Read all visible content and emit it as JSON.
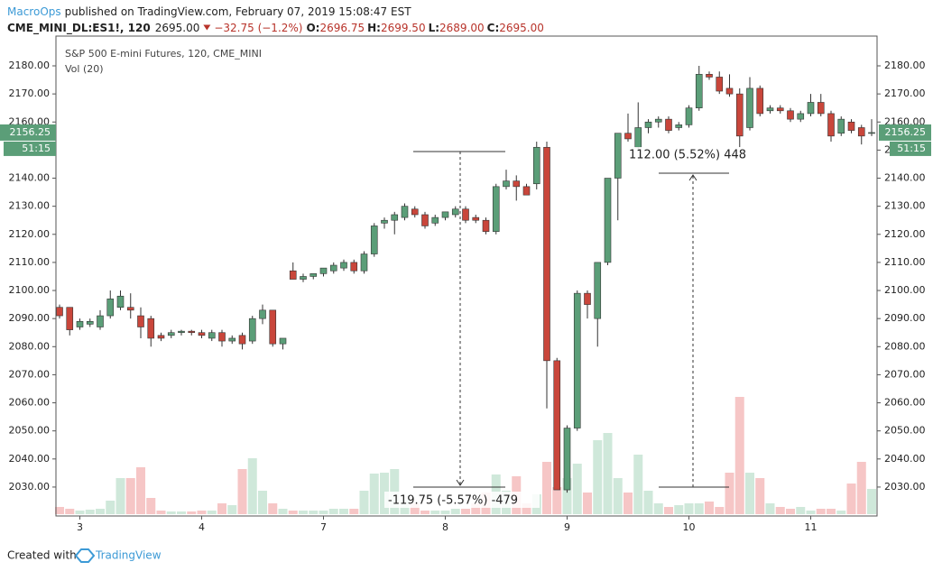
{
  "header": {
    "publisher": "MacroOps",
    "published": "published on TradingView.com, February 07, 2019 15:08:47 EST",
    "symbol": "CME_MINI_DL:ES1!, 120",
    "price": "2695.00",
    "change": "−32.75 (−1.2%)",
    "ohlc": [
      {
        "label": "O:",
        "value": "2696.75"
      },
      {
        "label": "H:",
        "value": "2699.50"
      },
      {
        "label": "L:",
        "value": "2689.00"
      },
      {
        "label": "C:",
        "value": "2695.00"
      }
    ]
  },
  "chart_data": {
    "type": "candlestick",
    "title": "S&P 500 E-mini Futures, 120, CME_MINI",
    "volume_label": "Vol (20)",
    "countdown": "51:15",
    "up_color": "#5b9e78",
    "down_color": "#c9463b",
    "up_volume_color": "#cfe8da",
    "down_volume_color": "#f6c6c6",
    "categories": [
      null,
      null,
      "3",
      null,
      null,
      null,
      null,
      null,
      null,
      null,
      null,
      null,
      null,
      null,
      "4",
      null,
      null,
      null,
      null,
      null,
      null,
      null,
      null,
      null,
      null,
      null,
      "7",
      null,
      null,
      null,
      null,
      null,
      null,
      null,
      null,
      null,
      null,
      null,
      "8",
      null,
      null,
      null,
      null,
      null,
      null,
      null,
      null,
      null,
      null,
      null,
      "9",
      null,
      null,
      null,
      null,
      null,
      null,
      null,
      null,
      null,
      null,
      null,
      "10",
      null,
      null,
      null,
      null,
      null,
      null,
      null,
      null,
      null,
      null,
      null,
      "11",
      null,
      null,
      null,
      null,
      null,
      null
    ],
    "open": [
      2094,
      2094,
      2087,
      2088,
      2087,
      2091,
      2094,
      2094,
      2091,
      2090,
      2084,
      2084,
      2085,
      2085.5,
      2085,
      2083,
      2085,
      2082,
      2084,
      2082,
      2090,
      2093,
      2081,
      2107,
      2104,
      2105,
      2106,
      2107,
      2108,
      2110,
      2107,
      2113,
      2124,
      2125,
      2126,
      2129,
      2127,
      2124,
      2126,
      2127,
      2129,
      2126,
      2125,
      2121,
      2137,
      2139,
      2137,
      2138,
      2151,
      2075,
      2029,
      2051,
      2099,
      2090,
      2110,
      2140,
      2156,
      2151,
      2158,
      2160,
      2161,
      2158,
      2159,
      2165,
      2177,
      2176,
      2172,
      2170,
      2158,
      2172,
      2164,
      2165,
      2164,
      2161,
      2163,
      2167,
      2163,
      2156,
      2160,
      2158,
      2156
    ],
    "high": [
      2095,
      2094,
      2090,
      2090,
      2093,
      2100,
      2100,
      2099,
      2094,
      2091,
      2085,
      2086,
      2086,
      2086,
      2086,
      2086,
      2086,
      2084,
      2085,
      2091,
      2095,
      2093,
      2083,
      2110,
      2106,
      2106,
      2108,
      2110,
      2111,
      2111,
      2114,
      2124,
      2126,
      2128,
      2131,
      2130,
      2128,
      2127,
      2128,
      2130,
      2130,
      2127,
      2126,
      2138,
      2143,
      2141,
      2138,
      2153,
      2153,
      2076,
      2052,
      2100,
      2100,
      2110,
      2140,
      2156,
      2163,
      2167,
      2161,
      2162,
      2162,
      2160,
      2166,
      2180,
      2178,
      2178,
      2177,
      2172,
      2176,
      2173,
      2166,
      2166,
      2165,
      2164,
      2170,
      2170,
      2164,
      2162,
      2161,
      2159,
      2161
    ],
    "low": [
      2090,
      2084,
      2086,
      2087,
      2086,
      2090,
      2093,
      2090,
      2083,
      2080,
      2082,
      2083,
      2084,
      2084,
      2083,
      2082,
      2080,
      2081,
      2079,
      2081,
      2088,
      2080,
      2079,
      2104,
      2103,
      2104,
      2105,
      2106,
      2107,
      2106,
      2106,
      2112,
      2122,
      2120,
      2125,
      2126,
      2122,
      2123,
      2125,
      2126,
      2124,
      2124,
      2120,
      2120,
      2136,
      2132,
      2134,
      2136,
      2058,
      2029,
      2028,
      2050,
      2090,
      2080,
      2109,
      2125,
      2153,
      2150,
      2156,
      2158,
      2156,
      2157,
      2158,
      2164,
      2175,
      2170,
      2169,
      2151,
      2157,
      2162,
      2163,
      2163,
      2160,
      2160,
      2162,
      2162,
      2153,
      2155,
      2156,
      2152,
      2155
    ],
    "close": [
      2091,
      2086,
      2089,
      2089,
      2091,
      2097,
      2098,
      2093,
      2087,
      2083,
      2083,
      2085,
      2085.5,
      2085,
      2084,
      2085,
      2082,
      2083,
      2081,
      2090,
      2093,
      2081,
      2083,
      2104,
      2105,
      2106,
      2108,
      2109,
      2110,
      2107,
      2113,
      2123,
      2125,
      2127,
      2130,
      2127,
      2123,
      2126,
      2128,
      2129,
      2125,
      2125,
      2121,
      2137,
      2139,
      2137,
      2134,
      2151,
      2075,
      2029,
      2051,
      2099,
      2095,
      2110,
      2140,
      2156,
      2154,
      2158,
      2160,
      2161,
      2157,
      2159,
      2165,
      2177,
      2176,
      2171,
      2170,
      2155,
      2172,
      2163,
      2165,
      2164,
      2161,
      2163,
      2167,
      2163,
      2155,
      2161,
      2157,
      2155,
      2156.25
    ],
    "volume": [
      8,
      6,
      4,
      5,
      6,
      15,
      40,
      40,
      52,
      18,
      4,
      3,
      3,
      3,
      4,
      4,
      12,
      10,
      50,
      62,
      26,
      12,
      6,
      4,
      4,
      4,
      4,
      6,
      6,
      6,
      26,
      45,
      46,
      50,
      16,
      12,
      4,
      4,
      4,
      6,
      6,
      12,
      24,
      44,
      26,
      42,
      12,
      22,
      58,
      30,
      40,
      56,
      24,
      82,
      90,
      40,
      24,
      66,
      26,
      12,
      8,
      10,
      12,
      12,
      14,
      8,
      46,
      130,
      46,
      40,
      12,
      8,
      6,
      8,
      4,
      6,
      6,
      4,
      34,
      58,
      28
    ],
    "ylim": [
      2019.7,
      2190.6
    ],
    "yticks": [
      {
        "value": 2030,
        "label": "2030.00"
      },
      {
        "value": 2040,
        "label": "2040.00"
      },
      {
        "value": 2050,
        "label": "2050.00"
      },
      {
        "value": 2060,
        "label": "2060.00"
      },
      {
        "value": 2070,
        "label": "2070.00"
      },
      {
        "value": 2080,
        "label": "2080.00"
      },
      {
        "value": 2090,
        "label": "2090.00"
      },
      {
        "value": 2100,
        "label": "2100.00"
      },
      {
        "value": 2110,
        "label": "2110.00"
      },
      {
        "value": 2120,
        "label": "2120.00"
      },
      {
        "value": 2130,
        "label": "2130.00"
      },
      {
        "value": 2140,
        "label": "2140.00"
      },
      {
        "value": 2150,
        "label": "2150.00"
      },
      {
        "value": 2160,
        "label": "2160.00"
      },
      {
        "value": 2170,
        "label": "2170.00"
      },
      {
        "value": 2180,
        "label": "2180.00"
      }
    ],
    "annotations": [
      "-119.75 (-5.57%) -479",
      "112.00 (5.52%) 448"
    ]
  },
  "footer": {
    "created_with": "Created with",
    "brand": "TradingView"
  }
}
